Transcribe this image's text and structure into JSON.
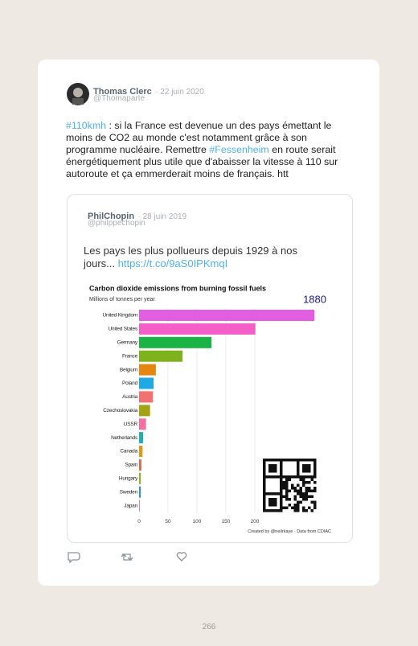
{
  "tweet": {
    "author": "Thomas Clerc",
    "date": "· 22 juin 2020",
    "handle": "@Thomaparte",
    "text": [
      {
        "t": "#110kmh",
        "link": true
      },
      {
        "t": " : si la France est devenue un des pays émettant le moins de CO2 au monde c'est notamment grâce à son programme nucléaire. Remettre ",
        "link": false
      },
      {
        "t": "#Fessenheim",
        "link": true
      },
      {
        "t": " en route serait énergétiquement plus utile que d'abaisser la vitesse à 110 sur autoroute et ça emmerderait moins de français. htt",
        "link": false
      }
    ]
  },
  "quoted_tweet": {
    "author": "PhilChopin",
    "date": "· 28 juin 2019",
    "handle": "@philppechopin",
    "text": "Les pays les plus pollueurs depuis 1929 à nos jours... ",
    "link": "https://t.co/9aS0IPKmqI",
    "chart": {
      "type": "bar",
      "title": "Carbon dioxide emissions from burning fossil fuels",
      "subtitle": "Millions of tonnes per year",
      "year": "1880",
      "categories": [
        "United Kingdom",
        "United States",
        "Germany",
        "France",
        "Belgium",
        "Poland",
        "Austria",
        "Czechoslovakia",
        "USSR",
        "Netherlands",
        "Canada",
        "Spain",
        "Hungary",
        "Sweden",
        "Japan"
      ],
      "values": [
        303,
        201,
        125,
        75,
        29,
        25,
        24,
        19,
        12,
        7,
        6,
        4,
        3,
        3,
        1
      ],
      "colors": [
        "#e35de3",
        "#f35fc6",
        "#1cb345",
        "#7db21c",
        "#e5870f",
        "#1fa8e3",
        "#f27171",
        "#a3a313",
        "#f46fa2",
        "#1cb0b3",
        "#d79a1a",
        "#d86b4c",
        "#9aae2a",
        "#3a8fc9",
        "#e0507a"
      ],
      "xlim": [
        0,
        320
      ],
      "xticks": [
        0,
        50,
        100,
        150,
        200
      ],
      "grid": true,
      "credit": "Created by @neilrkaye · Data from CDIAC"
    }
  },
  "page_number": "266"
}
